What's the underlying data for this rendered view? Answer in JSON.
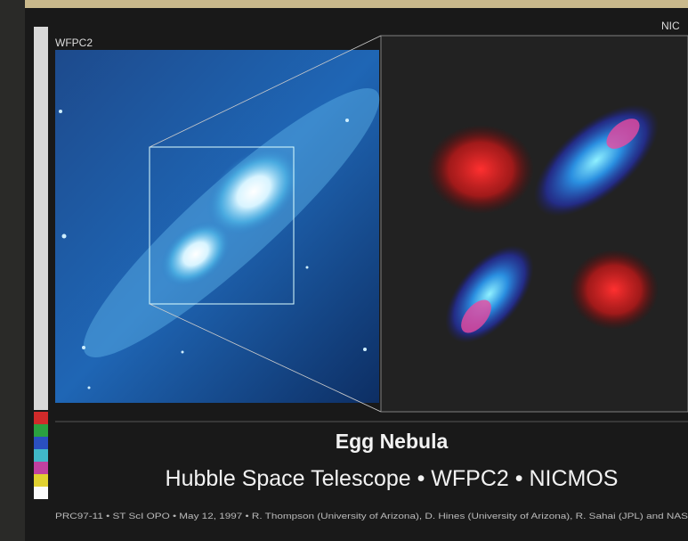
{
  "panels": {
    "left_label": "WFPC2",
    "right_label": "NIC"
  },
  "caption": {
    "title": "Egg Nebula",
    "subtitle": "Hubble Space Telescope • WFPC2 • NICMOS",
    "credit": "PRC97-11 • ST ScI OPO • May 12, 1997 • R. Thompson (University of Arizona), D. Hines (University of Arizona), R. Sahai (JPL) and NAS"
  }
}
